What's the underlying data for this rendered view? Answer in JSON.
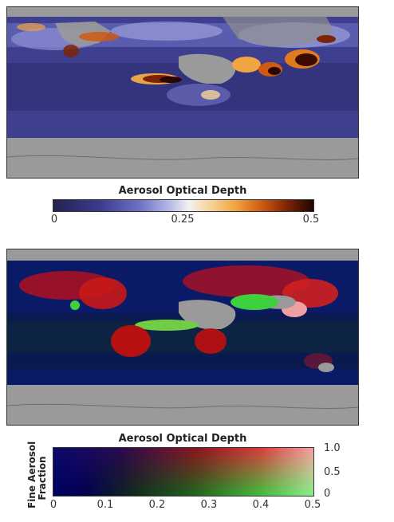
{
  "panel_top": {
    "colorbar_title": "Aerosol Optical Depth",
    "ticks": [
      "0",
      "0.25",
      "0.5"
    ]
  },
  "panel_bottom": {
    "colorbar_title": "Aerosol Optical Depth",
    "x_ticks": [
      "0",
      "0.1",
      "0.2",
      "0.3",
      "0.4",
      "0.5"
    ],
    "y_ticks": [
      "1.0",
      "0.5",
      "0"
    ],
    "y_label_line1": "Fine Aerosol",
    "y_label_line2": "Fraction"
  },
  "colors": {
    "land_gray": "#9a9a9a",
    "ocean_low": "#3b3c8e",
    "aod_high": "#7c2405",
    "fine_fraction_high": "#e03030",
    "coarse_fraction_high": "#3fd03f"
  }
}
